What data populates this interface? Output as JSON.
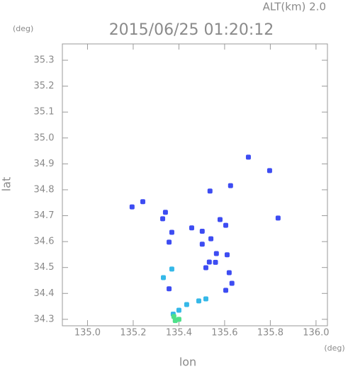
{
  "chart_data": {
    "type": "scatter",
    "title": "2015/06/25 01:20:12",
    "subtitle": "ALT(km) 2.0",
    "x_label": "lon",
    "y_label": "lat",
    "x_unit": "(deg)",
    "y_unit": "(deg)",
    "xlim": [
      134.89,
      136.05
    ],
    "ylim": [
      34.275,
      35.363
    ],
    "xticks": [
      {
        "value": 135,
        "label": "135.0"
      },
      135.2,
      135.4,
      135.6,
      135.8,
      {
        "value": 136,
        "label": "136.0"
      }
    ],
    "yticks": [
      34.3,
      34.4,
      34.5,
      34.6,
      34.7,
      34.8,
      34.9,
      {
        "value": 35,
        "label": "35.0"
      },
      35.1,
      35.2,
      35.3
    ],
    "series": [
      {
        "color": "#3d4cf2",
        "x": [
          135.242,
          135.195,
          135.704,
          135.797,
          135.834,
          135.626,
          135.536,
          135.341,
          135.329,
          135.369,
          135.456,
          135.58,
          135.54,
          135.502,
          135.564,
          135.533,
          135.518,
          135.611,
          135.62,
          135.632,
          135.605,
          135.357,
          135.357,
          135.605,
          135.502,
          135.56
        ],
        "values": [
          34.754,
          34.734,
          34.926,
          34.874,
          34.691,
          34.816,
          34.795,
          34.713,
          34.688,
          34.636,
          34.653,
          34.685,
          34.611,
          34.59,
          34.554,
          34.521,
          34.499,
          34.549,
          34.48,
          34.439,
          34.412,
          34.598,
          34.418,
          34.663,
          34.64,
          34.52
        ]
      },
      {
        "color": "#35b8e8",
        "x": [
          135.369,
          135.332,
          135.434,
          135.487,
          135.518,
          135.4,
          135.375
        ],
        "values": [
          34.494,
          34.461,
          34.357,
          34.371,
          34.379,
          34.335,
          34.32
        ]
      },
      {
        "color": "#4ee08a",
        "x": [
          135.378,
          135.384,
          135.4
        ],
        "values": [
          34.311,
          34.295,
          34.3
        ]
      }
    ]
  }
}
